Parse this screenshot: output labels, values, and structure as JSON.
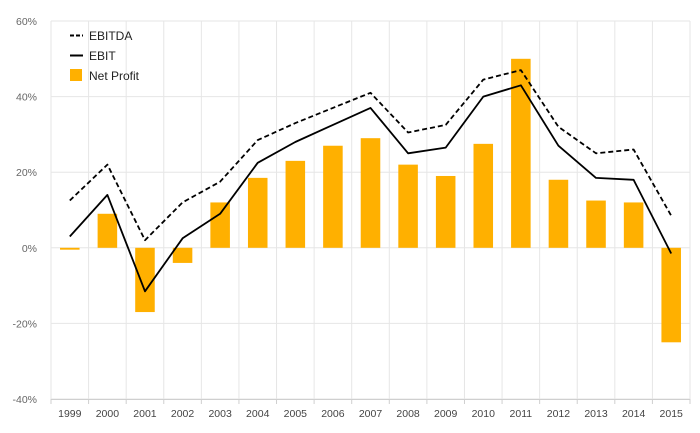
{
  "chart_data": {
    "type": "bar",
    "categories": [
      "1999",
      "2000",
      "2001",
      "2002",
      "2003",
      "2004",
      "2005",
      "2006",
      "2007",
      "2008",
      "2009",
      "2010",
      "2011",
      "2012",
      "2013",
      "2014",
      "2015"
    ],
    "series": [
      {
        "name": "EBITDA",
        "kind": "line",
        "style": "dashed",
        "color": "#000000",
        "values": [
          12.5,
          22,
          2,
          12,
          17.5,
          28.5,
          33,
          37,
          41,
          30.5,
          32.5,
          44.5,
          47,
          32,
          25,
          26,
          8.5
        ]
      },
      {
        "name": "EBIT",
        "kind": "line",
        "style": "solid",
        "color": "#000000",
        "values": [
          3,
          14,
          -11.5,
          2.5,
          9,
          22.5,
          28,
          32.5,
          37,
          25,
          26.5,
          40,
          43,
          27,
          18.5,
          18,
          -1.5
        ]
      },
      {
        "name": "Net Profit",
        "kind": "bar",
        "color": "#FFB000",
        "values": [
          -0.5,
          9,
          -17,
          -4,
          12,
          18.5,
          23,
          27,
          29,
          22,
          19,
          27.5,
          50,
          18,
          12.5,
          12,
          -25
        ]
      }
    ],
    "yticks": [
      "60%",
      "40%",
      "20%",
      "0%",
      "-20%",
      "-40%"
    ],
    "ylim": [
      -40,
      60
    ],
    "grid": true,
    "legend_position": "top-left",
    "legend": [
      {
        "label": "EBITDA",
        "symbol": "dashed-line"
      },
      {
        "label": "EBIT",
        "symbol": "solid-line"
      },
      {
        "label": "Net Profit",
        "symbol": "bar-swatch"
      }
    ]
  }
}
